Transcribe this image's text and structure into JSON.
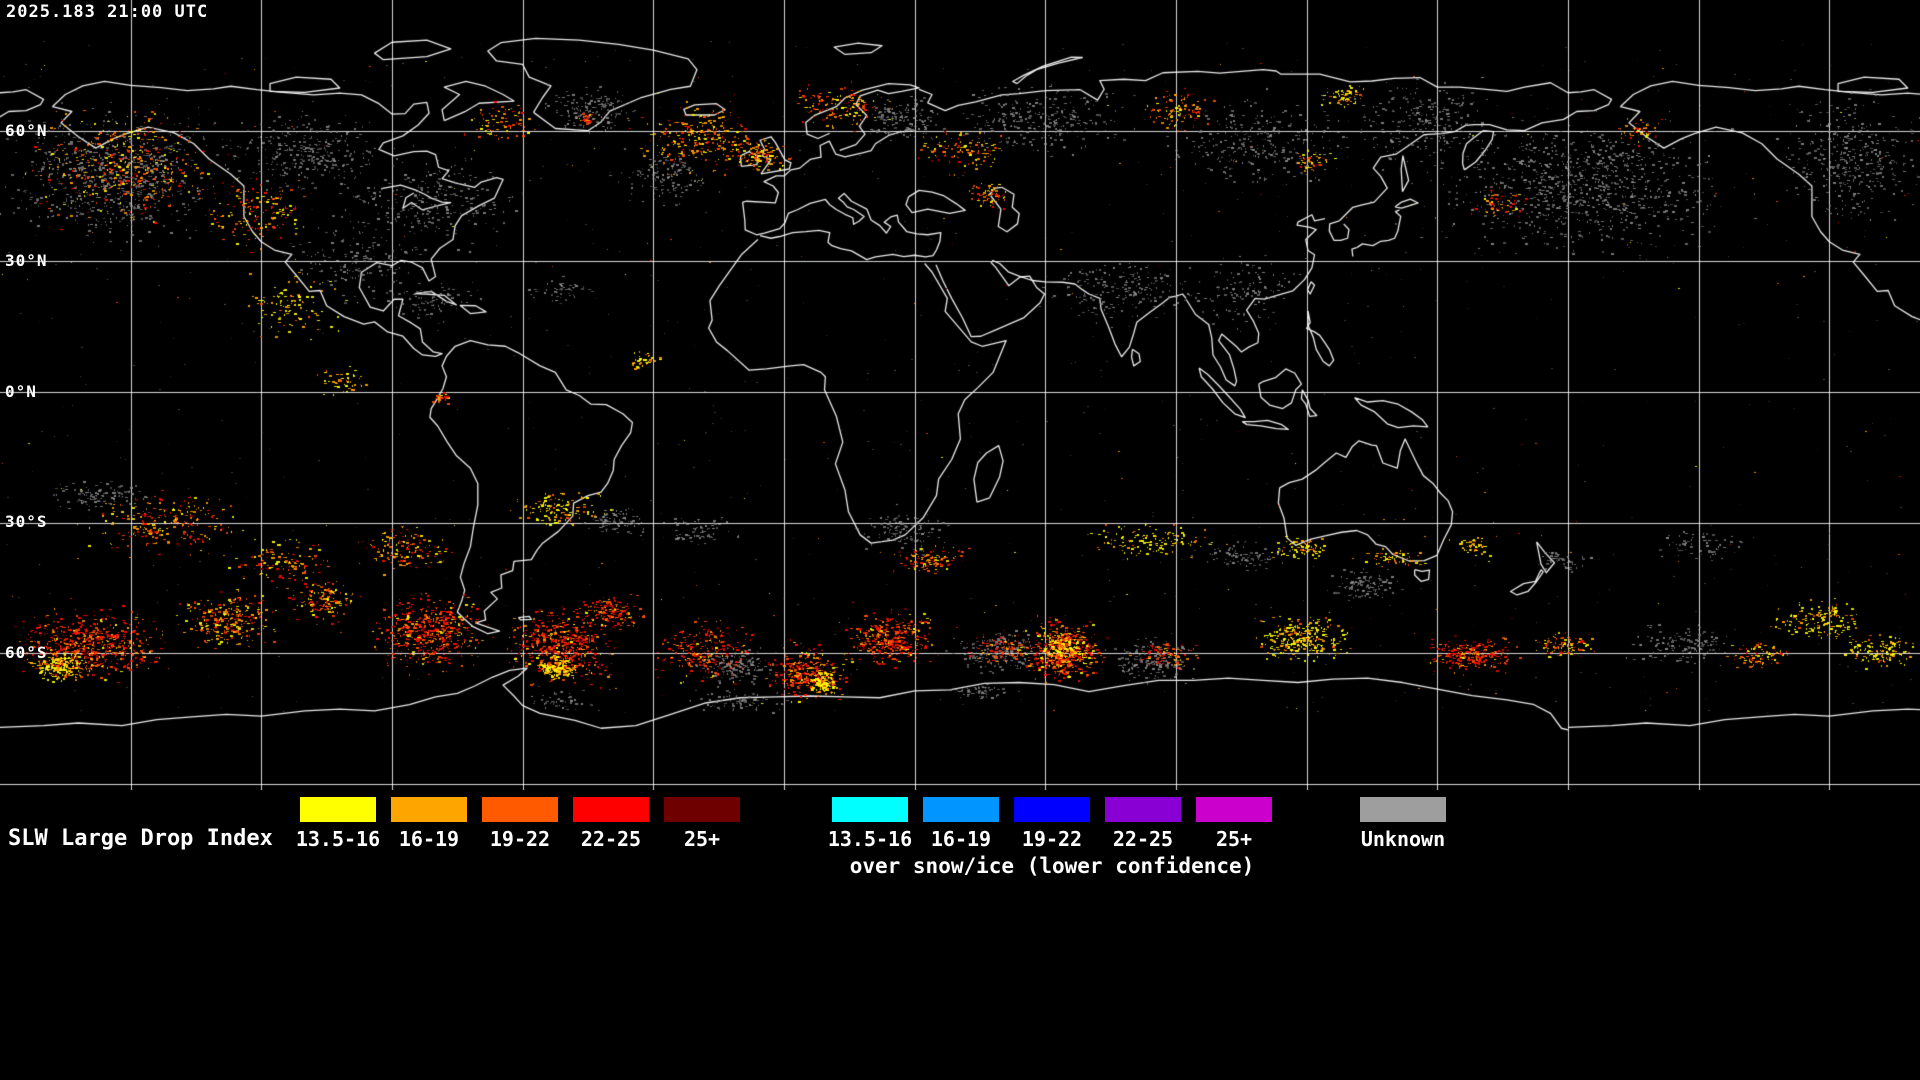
{
  "header": {
    "timestamp": "2025.183 21:00 UTC"
  },
  "map": {
    "background": "#000000",
    "coastline_color": "#ffffff",
    "grid_color": "#ffffff",
    "lat_labels": [
      {
        "label": "60°N"
      },
      {
        "label": "30°N"
      },
      {
        "label": "0°N"
      },
      {
        "label": "30°S"
      },
      {
        "label": "60°S"
      }
    ],
    "palette": {
      "yellow": "#ffff00",
      "orange": "#ffa000",
      "orange_red": "#ff5000",
      "red": "#ff0d00",
      "dark_red": "#7a0000",
      "unknown_gray": "#909090"
    }
  },
  "legend": {
    "title": "SLW Large Drop Index",
    "scale": [
      {
        "label": "13.5-16",
        "color": "#ffff00"
      },
      {
        "label": "16-19",
        "color": "#ffa500"
      },
      {
        "label": "19-22",
        "color": "#ff5a00"
      },
      {
        "label": "22-25",
        "color": "#ff0000"
      },
      {
        "label": "25+",
        "color": "#6e0000"
      }
    ],
    "snow_scale": [
      {
        "label": "13.5-16",
        "color": "#00ffff"
      },
      {
        "label": "16-19",
        "color": "#0095ff"
      },
      {
        "label": "19-22",
        "color": "#0000ff"
      },
      {
        "label": "22-25",
        "color": "#8800d4"
      },
      {
        "label": "25+",
        "color": "#cc00cc"
      }
    ],
    "snow_caption": "over snow/ice (lower confidence)",
    "unknown": {
      "label": "Unknown",
      "color": "#9e9e9e"
    }
  }
}
